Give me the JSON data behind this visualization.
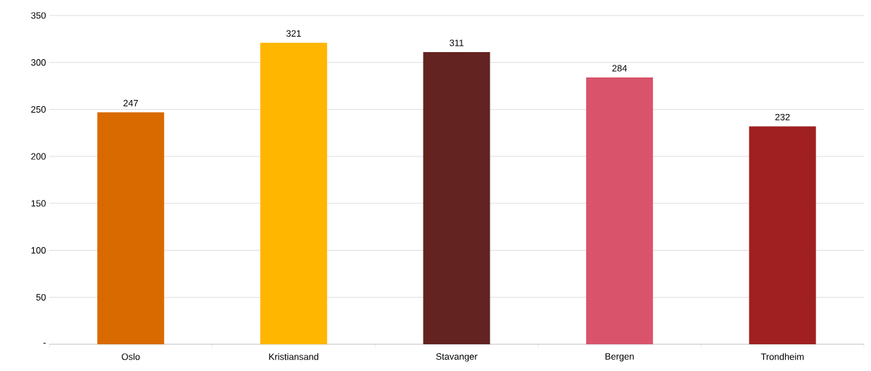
{
  "chart_data": {
    "type": "bar",
    "categories": [
      "Oslo",
      "Kristiansand",
      "Stavanger",
      "Bergen",
      "Trondheim"
    ],
    "values": [
      247,
      321,
      311,
      284,
      232
    ],
    "colors": [
      "#d96a00",
      "#ffb600",
      "#622321",
      "#d9546b",
      "#a02021"
    ],
    "ylim": [
      0,
      350
    ],
    "yticks": [
      {
        "value": 0,
        "label": "-"
      },
      50,
      100,
      150,
      200,
      250,
      300,
      350
    ],
    "grid": "y",
    "data_labels": true
  }
}
